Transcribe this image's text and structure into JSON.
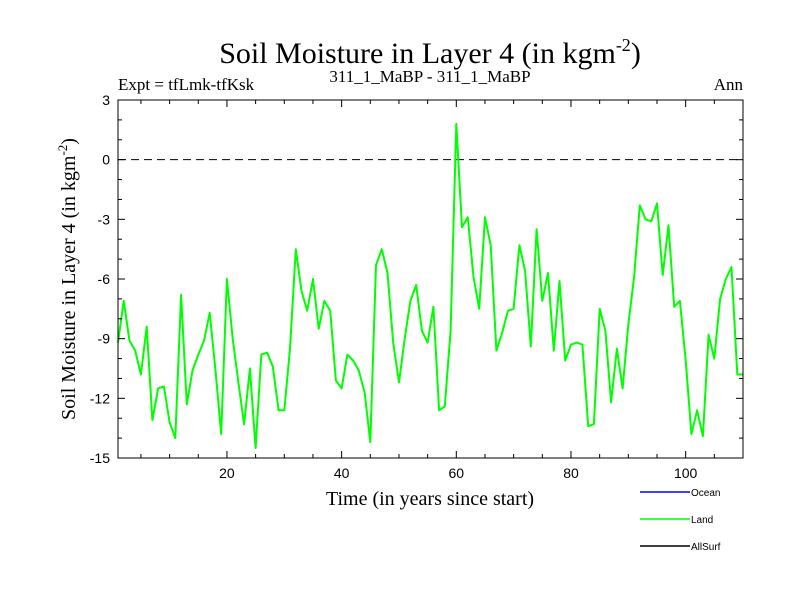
{
  "chart_data": {
    "type": "line",
    "title": "Soil Moisture in Layer 4 (in kgm",
    "title_sup": "-2",
    "title_end": ")",
    "subtitle_left": "Expt = tfLmk-tfKsk",
    "subtitle_center": "311_1_MaBP - 311_1_MaBP",
    "subtitle_right": "Ann",
    "xlabel": "Time (in years since start)",
    "ylabel": "Soil Moisture in Layer 4 (in kgm",
    "ylabel_sup": "-2",
    "ylabel_end": ")",
    "xlim": [
      1,
      110
    ],
    "ylim": [
      -15,
      3
    ],
    "xticks": [
      20,
      40,
      60,
      80,
      100
    ],
    "yticks": [
      3,
      0,
      -3,
      -6,
      -9,
      -12,
      -15
    ],
    "zero_line": 0,
    "series": [
      {
        "name": "Ocean",
        "color": "#0000ff",
        "values": []
      },
      {
        "name": "Land",
        "color": "#00ff00",
        "x": [
          1,
          2,
          3,
          4,
          5,
          6,
          7,
          8,
          9,
          10,
          11,
          12,
          13,
          14,
          15,
          16,
          17,
          18,
          19,
          20,
          21,
          22,
          23,
          24,
          25,
          26,
          27,
          28,
          29,
          30,
          31,
          32,
          33,
          34,
          35,
          36,
          37,
          38,
          39,
          40,
          41,
          42,
          43,
          44,
          45,
          46,
          47,
          48,
          49,
          50,
          51,
          52,
          53,
          54,
          55,
          56,
          57,
          58,
          59,
          60,
          61,
          62,
          63,
          64,
          65,
          66,
          67,
          68,
          69,
          70,
          71,
          72,
          73,
          74,
          75,
          76,
          77,
          78,
          79,
          80,
          81,
          82,
          83,
          84,
          85,
          86,
          87,
          88,
          89,
          90,
          91,
          92,
          93,
          94,
          95,
          96,
          97,
          98,
          99,
          100,
          101,
          102,
          103,
          104,
          105,
          106,
          107,
          108,
          109,
          110
        ],
        "values": [
          -9.2,
          -7.1,
          -9.1,
          -9.6,
          -10.8,
          -8.4,
          -13.1,
          -11.5,
          -11.4,
          -13.2,
          -14.0,
          -6.8,
          -12.3,
          -10.6,
          -9.8,
          -9.1,
          -7.7,
          -10.6,
          -13.8,
          -6.0,
          -9.0,
          -11.2,
          -13.3,
          -10.5,
          -14.5,
          -9.8,
          -9.7,
          -10.4,
          -12.6,
          -12.6,
          -9.5,
          -4.5,
          -6.6,
          -7.6,
          -6.0,
          -8.5,
          -7.1,
          -7.6,
          -11.1,
          -11.5,
          -9.8,
          -10.1,
          -10.6,
          -11.7,
          -14.2,
          -5.3,
          -4.5,
          -5.7,
          -9.2,
          -11.2,
          -9.0,
          -7.1,
          -6.3,
          -8.6,
          -9.2,
          -7.4,
          -12.6,
          -12.4,
          -8.6,
          1.8,
          -3.4,
          -2.9,
          -5.9,
          -7.5,
          -2.9,
          -4.3,
          -9.6,
          -8.7,
          -7.6,
          -7.5,
          -4.3,
          -5.6,
          -9.4,
          -3.5,
          -7.1,
          -5.7,
          -9.6,
          -6.1,
          -10.1,
          -9.3,
          -9.2,
          -9.3,
          -13.4,
          -13.3,
          -7.5,
          -8.6,
          -12.2,
          -9.5,
          -11.5,
          -8.3,
          -5.9,
          -2.3,
          -3.0,
          -3.1,
          -2.2,
          -5.8,
          -3.3,
          -7.4,
          -7.1,
          -10.1,
          -13.8,
          -12.6,
          -13.9,
          -8.8,
          -10.0,
          -7.0,
          -6.0,
          -5.4,
          -10.8,
          -10.8
        ]
      },
      {
        "name": "AllSurf",
        "color": "#000000",
        "values": []
      }
    ]
  }
}
